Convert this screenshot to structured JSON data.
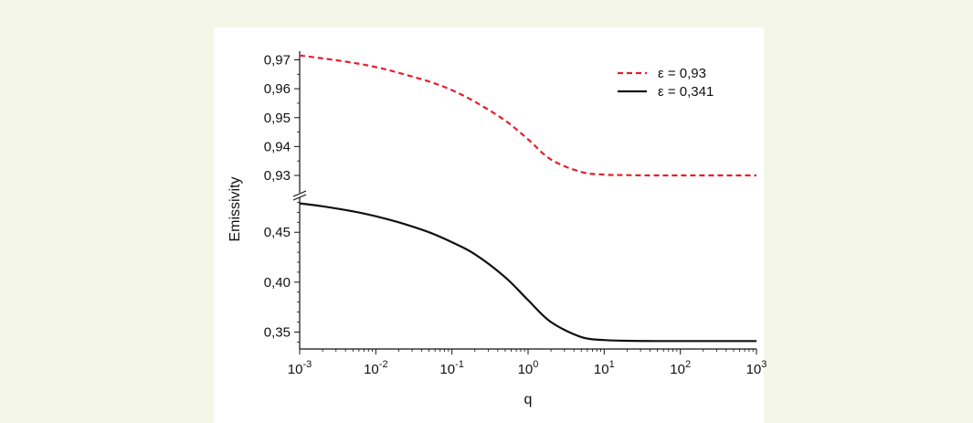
{
  "chart_data": {
    "type": "line",
    "xlabel": "q",
    "ylabel": "Emissivity",
    "x_scale": "log",
    "xlim": [
      0.001,
      1000
    ],
    "x_ticks": [
      {
        "base": "10",
        "exp": "-3"
      },
      {
        "base": "10",
        "exp": "-2"
      },
      {
        "base": "10",
        "exp": "-1"
      },
      {
        "base": "10",
        "exp": "0"
      },
      {
        "base": "10",
        "exp": "1"
      },
      {
        "base": "10",
        "exp": "2"
      },
      {
        "base": "10",
        "exp": "3"
      }
    ],
    "y_axis_broken": true,
    "y_upper": {
      "ylim": [
        0.924,
        0.973
      ],
      "ticks": [
        0.93,
        0.94,
        0.95,
        0.96,
        0.97
      ],
      "tick_labels": [
        "0,93",
        "0,94",
        "0,95",
        "0,96",
        "0,97"
      ]
    },
    "y_lower": {
      "ylim": [
        0.333,
        0.485
      ],
      "ticks": [
        0.35,
        0.4,
        0.45
      ],
      "tick_labels": [
        "0,35",
        "0,40",
        "0,45"
      ]
    },
    "legend_position": "top-right",
    "series": [
      {
        "name": "ε = 0,93",
        "color": "#e2202a",
        "style": "dashed",
        "panel": "upper",
        "x": [
          0.001,
          0.002,
          0.005,
          0.01,
          0.02,
          0.05,
          0.1,
          0.2,
          0.5,
          1,
          2,
          5,
          10,
          20,
          50,
          100,
          1000
        ],
        "y": [
          0.9715,
          0.9705,
          0.969,
          0.9675,
          0.9655,
          0.9625,
          0.9595,
          0.9555,
          0.949,
          0.9425,
          0.9355,
          0.9312,
          0.9303,
          0.9301,
          0.93,
          0.93,
          0.93
        ]
      },
      {
        "name": "ε = 0,341",
        "color": "#111111",
        "style": "solid",
        "panel": "lower",
        "x": [
          0.001,
          0.002,
          0.005,
          0.01,
          0.02,
          0.05,
          0.1,
          0.2,
          0.5,
          1,
          2,
          5,
          10,
          20,
          50,
          100,
          1000
        ],
        "y": [
          0.479,
          0.476,
          0.471,
          0.466,
          0.46,
          0.45,
          0.44,
          0.428,
          0.405,
          0.382,
          0.36,
          0.345,
          0.342,
          0.3412,
          0.341,
          0.341,
          0.341
        ]
      }
    ]
  }
}
